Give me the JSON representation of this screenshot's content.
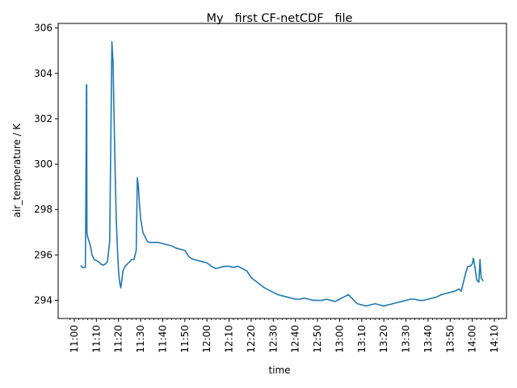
{
  "chart_data": {
    "type": "line",
    "title": "My   first CF-netCDF   file",
    "xlabel": "time",
    "ylabel": "air_temperature / K",
    "xlim": [
      "11:00",
      "14:10"
    ],
    "ylim": [
      293.2,
      306.2
    ],
    "x_ticks": [
      "11:00",
      "11:10",
      "11:20",
      "11:30",
      "11:40",
      "11:50",
      "12:00",
      "12:10",
      "12:20",
      "12:30",
      "12:40",
      "12:50",
      "13:00",
      "13:10",
      "13:20",
      "13:30",
      "13:40",
      "13:50",
      "14:00",
      "14:10"
    ],
    "y_ticks": [
      294,
      296,
      298,
      300,
      302,
      304,
      306
    ],
    "grid": false,
    "series": [
      {
        "color": "#1f77b4",
        "x": [
          "11:03",
          "11:03.5",
          "11:04.5",
          "11:05",
          "11:05.2",
          "11:05.5",
          "11:05.6",
          "11:05.7",
          "11:06",
          "11:07",
          "11:07.5",
          "11:08",
          "11:08.5",
          "11:09",
          "11:10",
          "11:11",
          "11:12",
          "11:13",
          "11:14",
          "11:15",
          "11:16",
          "11:17",
          "11:17.5",
          "11:18",
          "11:18.5",
          "11:19",
          "11:19.5",
          "11:20",
          "11:20.5",
          "11:21",
          "11:21.5",
          "11:22",
          "11:23",
          "11:24",
          "11:25",
          "11:26",
          "11:27",
          "11:28",
          "11:28.5",
          "11:29",
          "11:29.5",
          "11:30",
          "11:31",
          "11:32",
          "11:33",
          "11:34",
          "11:36",
          "11:38",
          "11:40",
          "11:42",
          "11:44",
          "11:46",
          "11:48",
          "11:50",
          "11:52",
          "11:54",
          "11:56",
          "11:58",
          "12:00",
          "12:02",
          "12:04",
          "12:06",
          "12:08",
          "12:10",
          "12:12",
          "12:14",
          "12:16",
          "12:18",
          "12:20",
          "12:22",
          "12:24",
          "12:26",
          "12:28",
          "12:30",
          "12:32",
          "12:34",
          "12:36",
          "12:38",
          "12:40",
          "12:42",
          "12:44",
          "12:46",
          "12:48",
          "12:50",
          "12:52",
          "12:54",
          "12:56",
          "12:58",
          "13:00",
          "13:02",
          "13:04",
          "13:06",
          "13:08",
          "13:10",
          "13:12",
          "13:14",
          "13:16",
          "13:18",
          "13:20",
          "13:22",
          "13:24",
          "13:26",
          "13:28",
          "13:30",
          "13:32",
          "13:34",
          "13:36",
          "13:38",
          "13:40",
          "13:42",
          "13:44",
          "13:46",
          "13:48",
          "13:50",
          "13:52",
          "13:54",
          "13:55",
          "13:56",
          "13:57",
          "13:58",
          "13:59",
          "14:00",
          "14:00.5",
          "14:01",
          "14:02",
          "14:03",
          "14:03.5",
          "14:04",
          "14:05"
        ],
        "y": [
          295.55,
          295.45,
          295.45,
          295.45,
          298.0,
          303.5,
          303.5,
          297.0,
          296.8,
          296.5,
          296.3,
          296.0,
          295.9,
          295.8,
          295.75,
          295.7,
          295.6,
          295.55,
          295.6,
          295.7,
          296.6,
          305.4,
          304.5,
          302.0,
          299.5,
          297.5,
          296.3,
          295.3,
          294.8,
          294.55,
          294.9,
          295.3,
          295.5,
          295.6,
          295.7,
          295.8,
          295.8,
          296.2,
          299.4,
          299.0,
          298.2,
          297.6,
          297.0,
          296.8,
          296.6,
          296.55,
          296.55,
          296.55,
          296.5,
          296.45,
          296.4,
          296.3,
          296.25,
          296.2,
          295.9,
          295.8,
          295.75,
          295.7,
          295.65,
          295.5,
          295.4,
          295.45,
          295.5,
          295.5,
          295.45,
          295.5,
          295.4,
          295.3,
          295.0,
          294.85,
          294.7,
          294.55,
          294.45,
          294.35,
          294.25,
          294.2,
          294.15,
          294.1,
          294.05,
          294.05,
          294.1,
          294.05,
          294.0,
          294.0,
          294.0,
          294.05,
          294.0,
          293.95,
          294.05,
          294.15,
          294.25,
          294.05,
          293.85,
          293.8,
          293.75,
          293.8,
          293.85,
          293.8,
          293.75,
          293.8,
          293.85,
          293.9,
          293.95,
          294.0,
          294.05,
          294.05,
          294.0,
          294.0,
          294.05,
          294.1,
          294.15,
          294.25,
          294.3,
          294.35,
          294.4,
          294.5,
          294.4,
          294.8,
          295.2,
          295.5,
          295.5,
          295.6,
          295.85,
          295.6,
          294.9,
          294.8,
          295.8,
          295.0,
          294.85
        ]
      }
    ]
  }
}
